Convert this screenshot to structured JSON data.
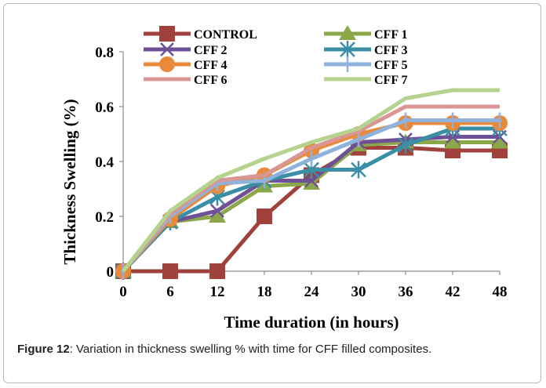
{
  "chart_data": {
    "type": "line",
    "x": [
      0,
      6,
      12,
      18,
      24,
      30,
      36,
      42,
      48
    ],
    "xlabel": "Time duration (in hours)",
    "ylabel": "Thickness Swelling (%)",
    "ylim": [
      0,
      0.8
    ],
    "yticks": [
      "0",
      "0.2",
      "0.4",
      "0.6",
      "0.8"
    ],
    "xticks": [
      "0",
      "6",
      "12",
      "18",
      "24",
      "30",
      "36",
      "42",
      "48"
    ],
    "grid": false,
    "legend_position": "top",
    "series": [
      {
        "name": "CONTROL",
        "color": "#a0413c",
        "marker": "square",
        "values": [
          0,
          0,
          0,
          0.2,
          0.35,
          0.45,
          0.45,
          0.44,
          0.44
        ]
      },
      {
        "name": "CFF 1",
        "color": "#8aa84a",
        "marker": "triangle",
        "values": [
          0,
          0.18,
          0.2,
          0.31,
          0.32,
          0.46,
          0.47,
          0.47,
          0.47
        ]
      },
      {
        "name": "CFF 2",
        "color": "#6e5097",
        "marker": "x",
        "values": [
          0,
          0.18,
          0.22,
          0.33,
          0.33,
          0.47,
          0.48,
          0.49,
          0.49
        ]
      },
      {
        "name": "CFF 3",
        "color": "#3a8fa6",
        "marker": "star",
        "values": [
          0,
          0.18,
          0.27,
          0.33,
          0.37,
          0.37,
          0.46,
          0.52,
          0.52
        ]
      },
      {
        "name": "CFF 4",
        "color": "#e88a3a",
        "marker": "circle",
        "values": [
          0,
          0.19,
          0.31,
          0.35,
          0.44,
          0.5,
          0.54,
          0.54,
          0.54
        ]
      },
      {
        "name": "CFF 5",
        "color": "#8eb2db",
        "marker": "plus",
        "values": [
          0,
          0.2,
          0.32,
          0.33,
          0.41,
          0.48,
          0.55,
          0.55,
          0.55
        ]
      },
      {
        "name": "CFF 6",
        "color": "#d99694",
        "marker": "none",
        "values": [
          0,
          0.21,
          0.33,
          0.35,
          0.45,
          0.51,
          0.6,
          0.6,
          0.6
        ]
      },
      {
        "name": "CFF 7",
        "color": "#b3d38e",
        "marker": "none",
        "values": [
          0,
          0.22,
          0.34,
          0.41,
          0.47,
          0.52,
          0.63,
          0.66,
          0.66
        ]
      }
    ]
  },
  "caption": {
    "label": "Figure 12",
    "text": ": Variation in thickness swelling % with time for CFF filled composites."
  }
}
